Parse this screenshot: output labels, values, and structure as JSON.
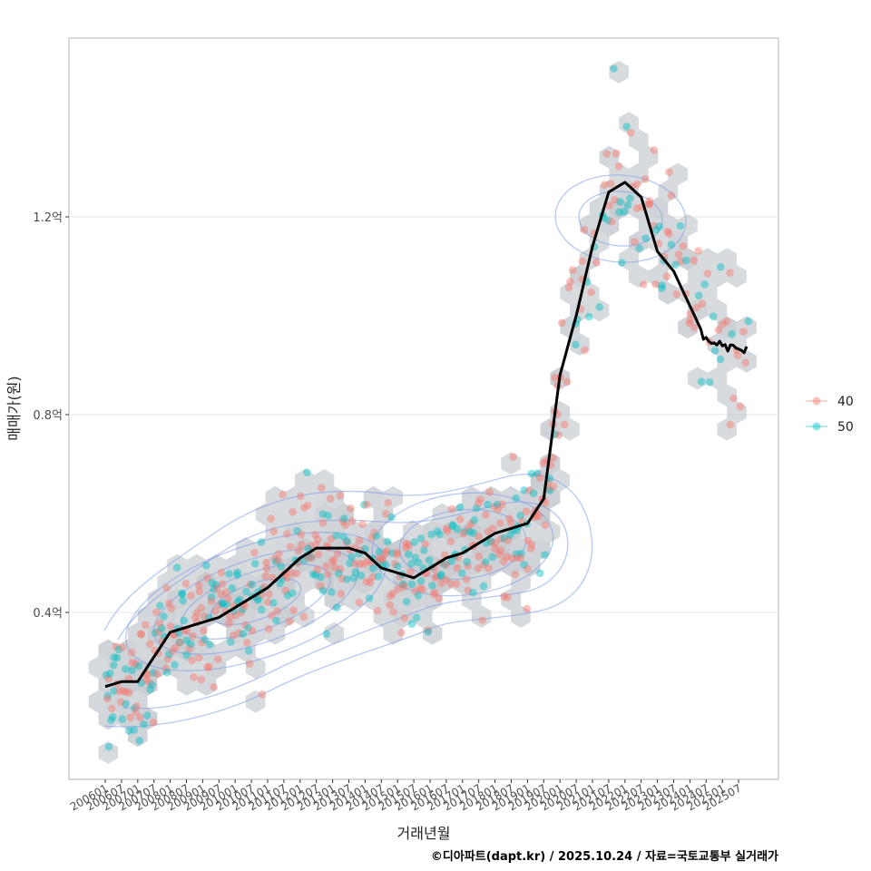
{
  "chart_data": {
    "type": "scatter",
    "xlabel": "거래년월",
    "ylabel": "매매가(원)",
    "caption": "©디아파트(dapt.kr) / 2025.10.24 / 자료=국토교통부 실거래가",
    "x_range": [
      "200601",
      "202510"
    ],
    "ylim": [
      0.08,
      1.58
    ],
    "y_unit": "억",
    "yticks": [
      {
        "value": 0.4,
        "label": "0.4억"
      },
      {
        "value": 0.8,
        "label": "0.8억"
      },
      {
        "value": 1.2,
        "label": "1.2억"
      }
    ],
    "xticks": [
      "200601",
      "200607",
      "200701",
      "200707",
      "200801",
      "200807",
      "200901",
      "200907",
      "201001",
      "201007",
      "201101",
      "201107",
      "201201",
      "201207",
      "201301",
      "201307",
      "201401",
      "201407",
      "201501",
      "201507",
      "201601",
      "201607",
      "201701",
      "201707",
      "201801",
      "201807",
      "201901",
      "201907",
      "202001",
      "202007",
      "202101",
      "202107",
      "202201",
      "202207",
      "202301",
      "202307",
      "202401",
      "202407",
      "202501",
      "202507"
    ],
    "legend": {
      "position": "right",
      "entries": [
        {
          "label": "40",
          "color": "#F8766D"
        },
        {
          "label": "50",
          "color": "#00BFC4"
        }
      ]
    },
    "series": [
      {
        "name": "trend",
        "color": "#000000",
        "points": [
          [
            "200601",
            0.25
          ],
          [
            "200607",
            0.26
          ],
          [
            "200701",
            0.26
          ],
          [
            "200707",
            0.31
          ],
          [
            "200801",
            0.36
          ],
          [
            "200807",
            0.37
          ],
          [
            "200901",
            0.38
          ],
          [
            "200907",
            0.39
          ],
          [
            "201001",
            0.41
          ],
          [
            "201007",
            0.43
          ],
          [
            "201101",
            0.45
          ],
          [
            "201107",
            0.48
          ],
          [
            "201201",
            0.51
          ],
          [
            "201207",
            0.53
          ],
          [
            "201301",
            0.53
          ],
          [
            "201307",
            0.53
          ],
          [
            "201401",
            0.52
          ],
          [
            "201407",
            0.49
          ],
          [
            "201501",
            0.48
          ],
          [
            "201507",
            0.47
          ],
          [
            "201601",
            0.49
          ],
          [
            "201607",
            0.51
          ],
          [
            "201701",
            0.52
          ],
          [
            "201707",
            0.54
          ],
          [
            "201801",
            0.56
          ],
          [
            "201807",
            0.57
          ],
          [
            "201901",
            0.58
          ],
          [
            "201907",
            0.63
          ],
          [
            "202001",
            0.88
          ],
          [
            "202007",
            1.0
          ],
          [
            "202101",
            1.14
          ],
          [
            "202107",
            1.25
          ],
          [
            "202201",
            1.27
          ],
          [
            "202207",
            1.24
          ],
          [
            "202301",
            1.13
          ],
          [
            "202307",
            1.09
          ],
          [
            "202401",
            1.02
          ],
          [
            "202407",
            0.95
          ],
          [
            "202501",
            0.94
          ],
          [
            "202507",
            0.93
          ]
        ]
      }
    ],
    "density_note": "hexbin and 2D density contours of transactions"
  }
}
